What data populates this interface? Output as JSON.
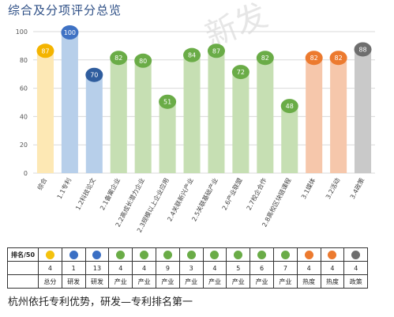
{
  "page": {
    "title": "综合及分项评分总览",
    "watermark": "新发",
    "footer": "杭州依托专利优势，研发—专利排名第一"
  },
  "chart_data": {
    "type": "bar",
    "title": "综合及分项评分总览",
    "categories": [
      "综合",
      "1.1专利",
      "1.2科技论文",
      "2.1备案企业",
      "2.2高成长潜力企业",
      "2.3规模以上企业应用",
      "2.4关联新兴产业",
      "2.5关联基础产业",
      "2.6产业联盟",
      "2.7校企合作",
      "2.8高校区块链课程",
      "3.1媒体",
      "3.2活动",
      "3.4政策"
    ],
    "values": [
      87,
      100,
      70,
      82,
      80,
      51,
      84,
      87,
      72,
      82,
      48,
      82,
      82,
      88
    ],
    "bar_colors": [
      "#fde8b4",
      "#b7cfea",
      "#b7cfea",
      "#c6dfb3",
      "#c6dfb3",
      "#c6dfb3",
      "#c6dfb3",
      "#c6dfb3",
      "#c6dfb3",
      "#c6dfb3",
      "#c6dfb3",
      "#f6c7ab",
      "#f6c7ab",
      "#c9c9c9"
    ],
    "label_colors": [
      "#f4b400",
      "#3f72c4",
      "#2f5d9e",
      "#6aac47",
      "#6aac47",
      "#6aac47",
      "#6aac47",
      "#6aac47",
      "#6aac47",
      "#6aac47",
      "#6aac47",
      "#ec7a2f",
      "#ec7a2f",
      "#6e6e6e"
    ],
    "ylim": [
      0,
      100
    ],
    "yticks": [
      0,
      20,
      40,
      60,
      80,
      100
    ],
    "grid": true,
    "legend": "none"
  },
  "table": {
    "row1_header": "排名/50",
    "dot_colors": [
      "#f4c20d",
      "#3a6fc4",
      "#3a6fc4",
      "#6aac47",
      "#6aac47",
      "#6aac47",
      "#6aac47",
      "#6aac47",
      "#6aac47",
      "#6aac47",
      "#6aac47",
      "#ec7a2f",
      "#ec7a2f",
      "#6e6e6e"
    ],
    "ranks": [
      "4",
      "1",
      "13",
      "4",
      "4",
      "9",
      "3",
      "4",
      "5",
      "6",
      "7",
      "4",
      "4",
      "4"
    ],
    "groups": [
      "总分",
      "研发",
      "研发",
      "产业",
      "产业",
      "产业",
      "产业",
      "产业",
      "产业",
      "产业",
      "产业",
      "热度",
      "热度",
      "政策"
    ]
  }
}
